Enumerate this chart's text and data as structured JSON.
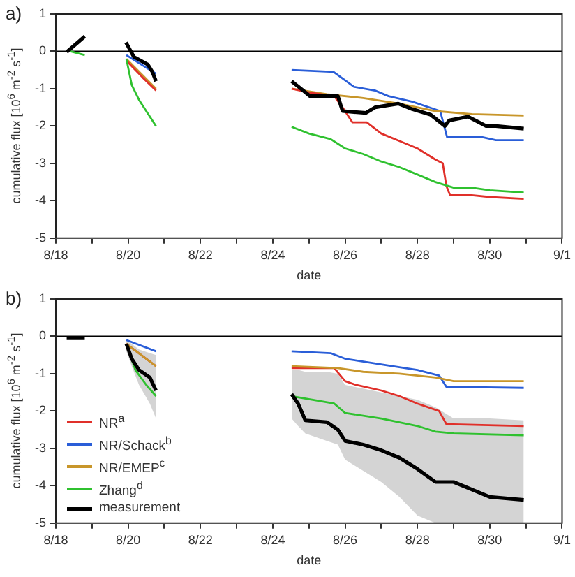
{
  "chart_data": [
    {
      "type": "line",
      "title": "a)",
      "xlabel": "date",
      "ylabel": "cumulative flux [10$^{6}$ m$^{-2}$ s$^{-1}$]",
      "xlim": [
        "--08-18",
        "--09-01"
      ],
      "ylim": [
        -5,
        1
      ],
      "xticks": [
        {
          "value": "--08-18",
          "label": "8/18"
        },
        {
          "value": "--08-19",
          "label": null
        },
        {
          "value": "--08-20",
          "label": "8/20"
        },
        {
          "value": "--08-21",
          "label": null
        },
        {
          "value": "--08-22",
          "label": "8/22"
        },
        {
          "value": "--08-23",
          "label": null
        },
        {
          "value": "--08-24",
          "label": "8/24"
        },
        {
          "value": "--08-25",
          "label": null
        },
        {
          "value": "--08-26",
          "label": "8/26"
        },
        {
          "value": "--08-27",
          "label": null
        },
        {
          "value": "--08-28",
          "label": "8/28"
        },
        {
          "value": "--08-29",
          "label": null
        },
        {
          "value": "--08-30",
          "label": "8/30"
        },
        {
          "value": "--08-31",
          "label": null
        },
        {
          "value": "--09-01",
          "label": "9/1"
        }
      ],
      "yticks": [
        1,
        0,
        -1,
        -2,
        -3,
        -4,
        -5
      ],
      "ref_lines": [
        {
          "axis": "y",
          "value": 0,
          "color": "#000000"
        }
      ],
      "series": [
        {
          "color": "#2a5ed8",
          "x": [
            "--08-19T22:48",
            "--08-20T18:29",
            "--08-22T12:00",
            "--08-24T12:29",
            "--08-25T16:19",
            "--08-26T06:00",
            "--08-26T19:55",
            "--08-27T04:48",
            "--08-27T20:38",
            "--08-28T15:07",
            "--08-28T19:41",
            "--08-29T19:12",
            "--08-30T04:05",
            "--08-30T22:34"
          ],
          "values": [
            -0.1,
            -0.6,
            null,
            -0.5,
            -0.55,
            -0.95,
            -1.05,
            -1.2,
            -1.35,
            -1.6,
            -2.3,
            -2.3,
            -2.38,
            -2.38
          ]
        },
        {
          "color": "#c8962a",
          "x": [
            "--08-19T22:48",
            "--08-20T18:29",
            "--08-22T12:00",
            "--08-24T12:29",
            "--08-25T12:00",
            "--08-26T12:00",
            "--08-27T12:00",
            "--08-28T12:00",
            "--08-29T12:00",
            "--08-30T22:34"
          ],
          "values": [
            -0.2,
            -1.0,
            null,
            -1.0,
            -1.15,
            -1.25,
            -1.4,
            -1.6,
            -1.68,
            -1.72
          ]
        },
        {
          "color": "#e0302a",
          "x": [
            "--08-19T22:48",
            "--08-20T09:36",
            "--08-20T18:29",
            "--08-22T12:00",
            "--08-24T12:29",
            "--08-25T00:00",
            "--08-25T16:48",
            "--08-25T22:19",
            "--08-26T04:48",
            "--08-26T14:24",
            "--08-27T00:00",
            "--08-27T12:00",
            "--08-28T00:00",
            "--08-28T12:00",
            "--08-28T16:48",
            "--08-28T19:12",
            "--08-28T21:36",
            "--08-29T12:00",
            "--08-30T00:00",
            "--08-30T22:34"
          ],
          "values": [
            -0.25,
            -0.7,
            -1.05,
            null,
            -1.0,
            -1.1,
            -1.2,
            -1.5,
            -1.9,
            -1.9,
            -2.2,
            -2.4,
            -2.6,
            -2.9,
            -3.0,
            -3.6,
            -3.85,
            -3.85,
            -3.9,
            -3.95
          ]
        },
        {
          "color": "#2fc12f",
          "x": [
            "--08-18T09:36",
            "--08-18T19:12",
            "--08-19T09:36",
            "--08-19T22:48",
            "--08-20T02:24",
            "--08-20T07:12",
            "--08-20T12:00",
            "--08-20T18:29",
            "--08-22T12:00",
            "--08-24T12:29",
            "--08-25T00:00",
            "--08-25T14:24",
            "--08-26T00:00",
            "--08-26T12:00",
            "--08-27T00:00",
            "--08-27T12:00",
            "--08-28T00:00",
            "--08-28T12:00",
            "--08-29T00:00",
            "--08-29T12:00",
            "--08-30T00:00",
            "--08-30T22:34"
          ],
          "values": [
            0,
            -0.1,
            null,
            -0.2,
            -0.9,
            -1.3,
            -1.6,
            -2.0,
            null,
            -2.02,
            -2.2,
            -2.35,
            -2.6,
            -2.75,
            -2.95,
            -3.1,
            -3.3,
            -3.5,
            -3.65,
            -3.65,
            -3.72,
            -3.78
          ]
        },
        {
          "color": "#000000",
          "x": [
            "--08-18T07:12",
            "--08-18T19:12",
            "--08-19T09:36",
            "--08-19T22:34",
            "--08-20T03:50",
            "--08-20T12:58",
            "--08-20T16:05",
            "--08-20T18:29",
            "--08-22T12:00",
            "--08-24T12:29",
            "--08-24T18:43",
            "--08-25T00:43",
            "--08-25T19:12",
            "--08-25T22:19",
            "--08-26T13:41",
            "--08-26T19:55",
            "--08-27T11:17",
            "--08-27T20:38",
            "--08-28T08:53",
            "--08-28T18:14",
            "--08-28T21:07",
            "--08-29T09:36",
            "--08-29T21:36",
            "--08-30T04:05",
            "--08-30T22:34"
          ],
          "values": [
            -0.02,
            0.4,
            null,
            0.24,
            -0.15,
            -0.35,
            -0.55,
            -0.8,
            null,
            -0.8,
            -1.0,
            -1.2,
            -1.2,
            -1.6,
            -1.65,
            -1.5,
            -1.4,
            -1.55,
            -1.7,
            -2.0,
            -1.85,
            -1.75,
            -2.0,
            -2.0,
            -2.07
          ]
        }
      ]
    },
    {
      "type": "line",
      "title": "b)",
      "xlabel": "date",
      "ylabel": "cumulative flux [10$^{6}$ m$^{-2}$ s$^{-1}$]",
      "xlim": [
        "--08-18",
        "--09-01"
      ],
      "ylim": [
        -5,
        1
      ],
      "legend": "bottom left",
      "xticks": [
        {
          "value": "--08-18",
          "label": "8/18"
        },
        {
          "value": "--08-19",
          "label": null
        },
        {
          "value": "--08-20",
          "label": "8/20"
        },
        {
          "value": "--08-21",
          "label": null
        },
        {
          "value": "--08-22",
          "label": "8/22"
        },
        {
          "value": "--08-23",
          "label": null
        },
        {
          "value": "--08-24",
          "label": "8/24"
        },
        {
          "value": "--08-25",
          "label": null
        },
        {
          "value": "--08-26",
          "label": "8/26"
        },
        {
          "value": "--08-27",
          "label": null
        },
        {
          "value": "--08-28",
          "label": "8/28"
        },
        {
          "value": "--08-29",
          "label": null
        },
        {
          "value": "--08-30",
          "label": "8/30"
        },
        {
          "value": "--08-31",
          "label": null
        },
        {
          "value": "--09-01",
          "label": "9/1"
        }
      ],
      "yticks": [
        1,
        0,
        -1,
        -2,
        -3,
        -4,
        -5
      ],
      "ref_lines": [
        {
          "axis": "y",
          "value": 0,
          "color": "#000000"
        }
      ],
      "series": [
        {
          "name": "NR$^{a}$",
          "color": "#e0302a",
          "x": [
            "--08-19T22:48",
            "--08-20T18:29",
            "--08-22T12:00",
            "--08-24T12:29",
            "--08-25T16:48",
            "--08-26T00:00",
            "--08-26T07:12",
            "--08-27T00:00",
            "--08-27T12:00",
            "--08-28T00:00",
            "--08-28T14:24",
            "--08-28T19:12",
            "--08-30T22:34"
          ],
          "values": [
            -0.2,
            -0.8,
            null,
            -0.85,
            -0.85,
            -1.2,
            -1.3,
            -1.45,
            -1.6,
            -1.8,
            -2.0,
            -2.35,
            -2.4
          ]
        },
        {
          "name": "NR/Schack$^{b}$",
          "color": "#2a5ed8",
          "x": [
            "--08-19T22:48",
            "--08-20T18:29",
            "--08-22T12:00",
            "--08-24T12:29",
            "--08-25T14:24",
            "--08-26T00:00",
            "--08-27T00:00",
            "--08-28T00:00",
            "--08-28T14:24",
            "--08-28T19:12",
            "--08-30T22:34"
          ],
          "values": [
            -0.1,
            -0.4,
            null,
            -0.4,
            -0.45,
            -0.6,
            -0.75,
            -0.9,
            -1.05,
            -1.35,
            -1.38
          ]
        },
        {
          "name": "NR/EMEP$^{c}$",
          "color": "#c8962a",
          "x": [
            "--08-19T22:48",
            "--08-20T18:29",
            "--08-22T12:00",
            "--08-24T12:29",
            "--08-25T19:12",
            "--08-26T12:00",
            "--08-27T12:00",
            "--08-28T12:00",
            "--08-29T00:00",
            "--08-30T22:34"
          ],
          "values": [
            -0.2,
            -0.8,
            null,
            -0.8,
            -0.85,
            -0.95,
            -1.0,
            -1.1,
            -1.2,
            -1.2
          ]
        },
        {
          "name": "Zhang$^{d}$",
          "color": "#2fc12f",
          "x": [
            "--08-19T22:48",
            "--08-20T04:48",
            "--08-20T12:00",
            "--08-20T18:29",
            "--08-22T12:00",
            "--08-24T12:29",
            "--08-25T16:48",
            "--08-26T00:00",
            "--08-27T00:00",
            "--08-28T00:00",
            "--08-28T12:00",
            "--08-29T00:00",
            "--08-30T22:34"
          ],
          "values": [
            -0.2,
            -0.9,
            -1.3,
            -1.6,
            null,
            -1.6,
            -1.8,
            -2.05,
            -2.2,
            -2.4,
            -2.55,
            -2.6,
            -2.65
          ]
        },
        {
          "name": "measurement",
          "color": "#000000",
          "x": [
            "--08-18T07:12",
            "--08-18T19:12",
            "--08-19T09:36",
            "--08-19T22:48",
            "--08-20T02:24",
            "--08-20T07:12",
            "--08-20T14:24",
            "--08-20T18:29",
            "--08-22T12:00",
            "--08-24T12:29",
            "--08-24T16:48",
            "--08-24T21:36",
            "--08-25T12:00",
            "--08-25T19:12",
            "--08-26T00:00",
            "--08-26T12:00",
            "--08-27T00:00",
            "--08-27T12:00",
            "--08-28T00:00",
            "--08-28T12:00",
            "--08-29T00:00",
            "--08-29T12:00",
            "--08-30T00:00",
            "--08-30T22:34"
          ],
          "values": [
            -0.05,
            -0.05,
            null,
            -0.2,
            -0.6,
            -0.9,
            -1.1,
            -1.45,
            null,
            -1.55,
            -1.8,
            -2.25,
            -2.3,
            -2.5,
            -2.8,
            -2.9,
            -3.05,
            -3.25,
            -3.55,
            -3.9,
            -3.9,
            -4.1,
            -4.3,
            -4.38
          ],
          "upper": [
            null,
            null,
            null,
            -0.1,
            -0.2,
            -0.35,
            -0.45,
            -0.5,
            null,
            -0.9,
            -0.9,
            -0.95,
            -0.95,
            -1.0,
            -1.3,
            -1.4,
            -1.5,
            -1.6,
            -1.7,
            -1.9,
            -2.2,
            -2.2,
            -2.2,
            -2.25
          ],
          "lower": [
            null,
            null,
            null,
            -0.4,
            -0.8,
            -1.3,
            -1.8,
            -2.2,
            null,
            -2.2,
            -2.4,
            -2.6,
            -2.8,
            -2.9,
            -3.3,
            -3.6,
            -3.9,
            -4.3,
            -4.8,
            -5,
            -5,
            -5,
            -5,
            -5
          ]
        }
      ]
    }
  ]
}
